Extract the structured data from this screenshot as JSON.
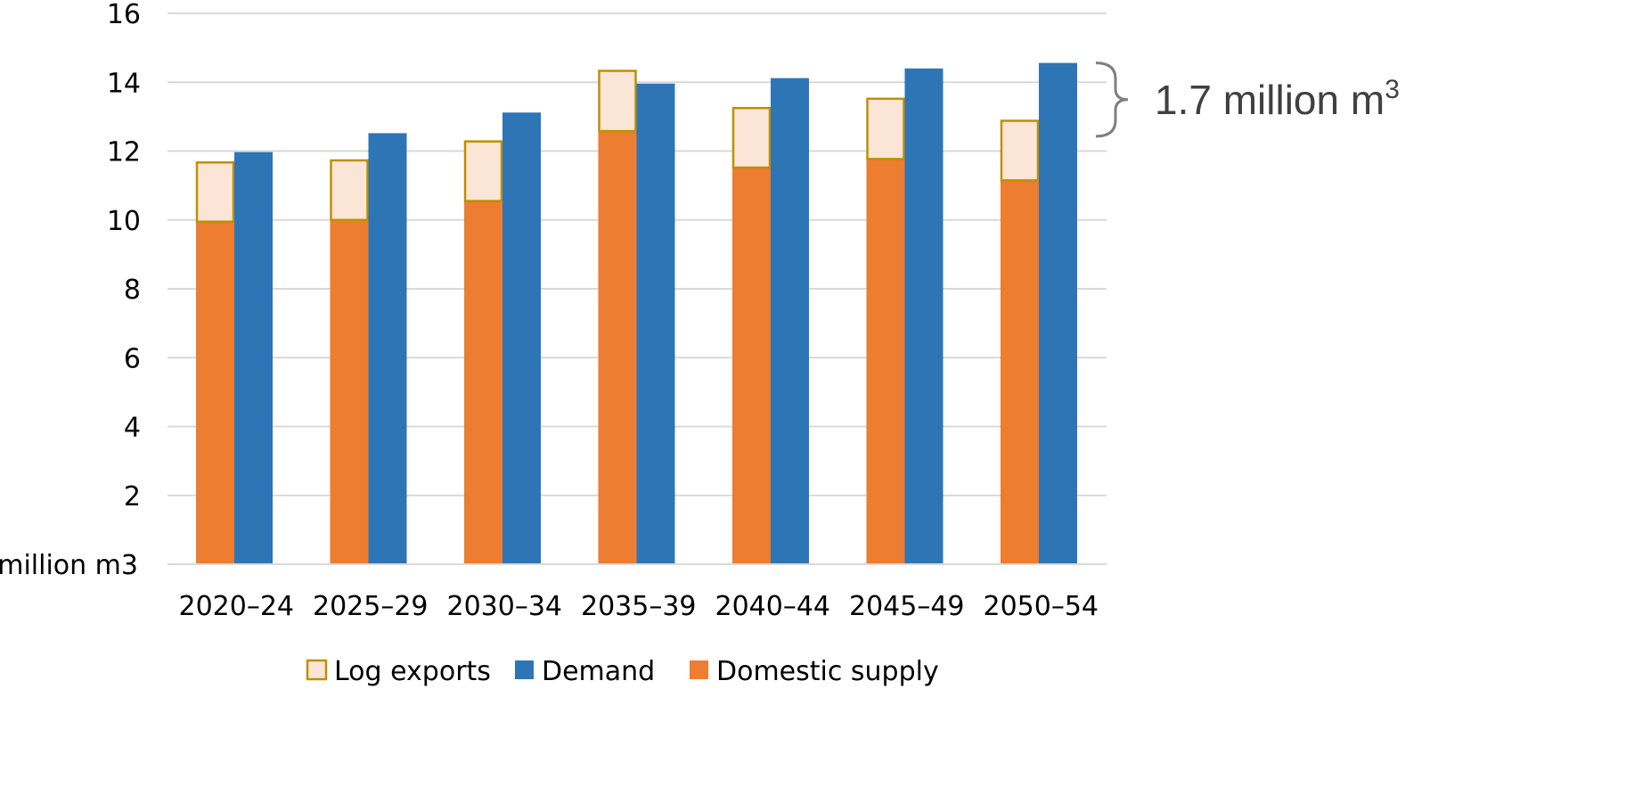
{
  "chart_data": {
    "type": "bar",
    "categories": [
      "2020–24",
      "2025–29",
      "2030–34",
      "2035–39",
      "2040–44",
      "2045–49",
      "2050–54"
    ],
    "series": [
      {
        "name": "Domestic supply",
        "stack": "supply",
        "color": "#ED7D31",
        "values": [
          9.95,
          10.0,
          10.55,
          12.58,
          11.52,
          11.77,
          11.15
        ]
      },
      {
        "name": "Log exports",
        "stack": "supply",
        "color": "#FBE5D6",
        "border": "#BF9000",
        "values": [
          1.72,
          1.73,
          1.73,
          1.75,
          1.73,
          1.75,
          1.73
        ]
      },
      {
        "name": "Demand",
        "stack": "demand",
        "color": "#2E75B6",
        "values": [
          11.97,
          12.52,
          13.12,
          13.96,
          14.12,
          14.4,
          14.56
        ]
      }
    ],
    "ylim": [
      0,
      16
    ],
    "yticks": [
      2,
      4,
      6,
      8,
      10,
      12,
      14,
      16
    ],
    "ylabel": "million m3",
    "xlabel": "",
    "title": "",
    "grid": true,
    "legend": {
      "position": "bottom",
      "entries": [
        "Log exports",
        "Demand",
        "Domestic supply"
      ]
    },
    "annotation": {
      "text": "1.7 million m",
      "superscript": "3",
      "target": "2050–54"
    }
  }
}
